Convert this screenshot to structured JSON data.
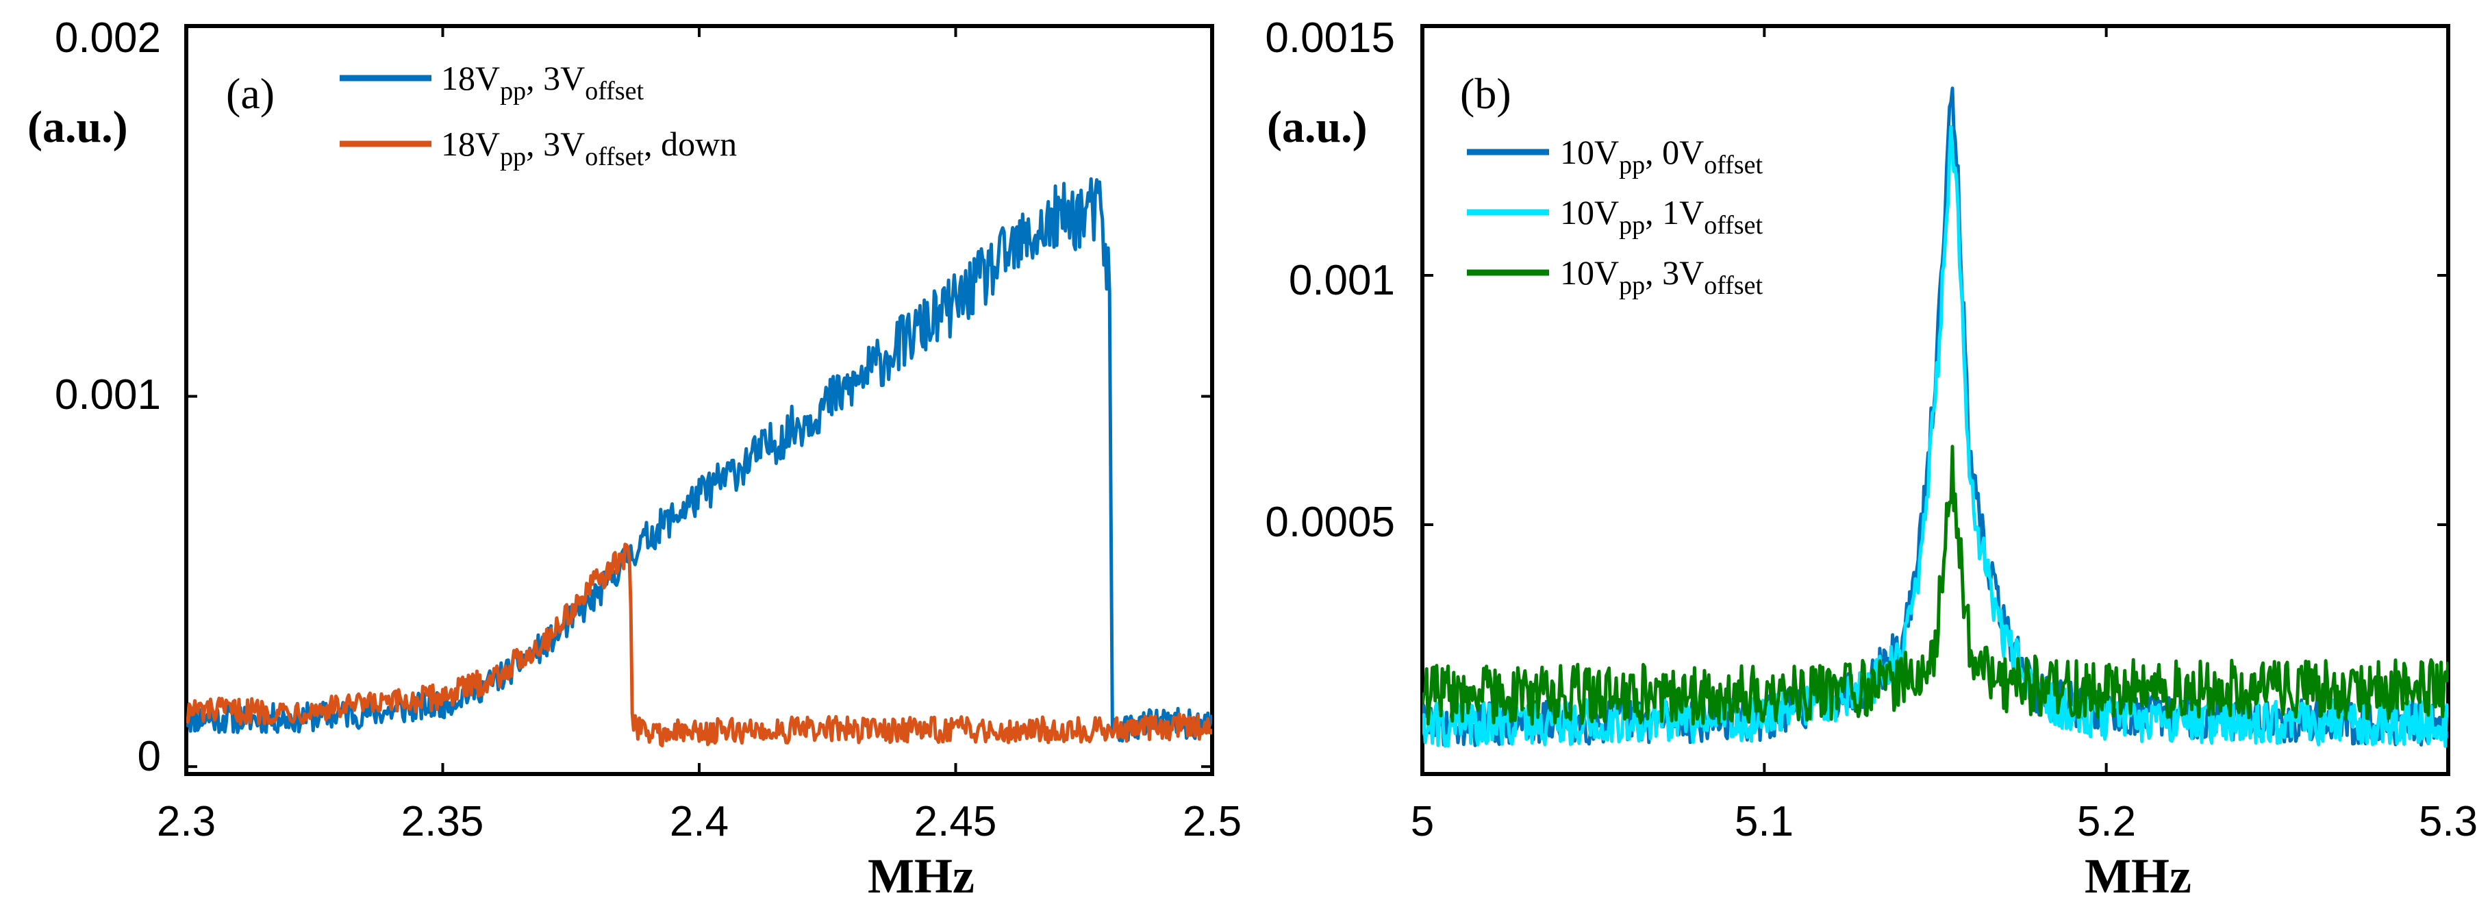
{
  "chart_data": [
    {
      "type": "line",
      "panel_label": "(a)",
      "ylabel": "(a.u.)",
      "xlabel": "MHz",
      "xlim": [
        2.3,
        2.5
      ],
      "ylim": [
        -2e-05,
        0.002
      ],
      "xticks": [
        2.3,
        2.35,
        2.4,
        2.45,
        2.5
      ],
      "xtick_labels": [
        "2.3",
        "2.35",
        "2.4",
        "2.45",
        "2.5"
      ],
      "yticks": [
        0,
        0.001,
        0.002
      ],
      "ytick_labels": [
        "0",
        "0.001",
        "0.002"
      ],
      "legend_position": "top-left",
      "series": [
        {
          "name": "18Vpp, 3Voffset",
          "legend": {
            "a": "18V",
            "s1": "pp",
            "b": ", 3V",
            "s2": "offset",
            "c": ""
          },
          "color": "#0072BD",
          "x": [
            2.3,
            2.32,
            2.34,
            2.35,
            2.36,
            2.37,
            2.38,
            2.385,
            2.39,
            2.4,
            2.41,
            2.42,
            2.43,
            2.44,
            2.45,
            2.46,
            2.47,
            2.478,
            2.48,
            2.4805,
            2.49,
            2.5
          ],
          "values": [
            0.00013,
            0.00013,
            0.00015,
            0.00017,
            0.00023,
            0.00033,
            0.00046,
            0.00055,
            0.00062,
            0.00073,
            0.00083,
            0.00093,
            0.00103,
            0.00115,
            0.00125,
            0.00138,
            0.00148,
            0.0015,
            0.00131,
            0.0001,
            0.00012,
            0.00011
          ],
          "noise": 4e-05,
          "noise_growth": 6e-05,
          "noise_from": 2.38,
          "noise_to": 2.48
        },
        {
          "name": "18Vpp, 3Voffset, down",
          "legend": {
            "a": "18V",
            "s1": "pp",
            "b": ", 3V",
            "s2": "offset",
            "c": ", down"
          },
          "color": "#D95319",
          "x": [
            2.3,
            2.32,
            2.34,
            2.35,
            2.36,
            2.37,
            2.375,
            2.38,
            2.385,
            2.3865,
            2.387,
            2.39,
            2.42,
            2.45,
            2.48,
            2.5
          ],
          "values": [
            0.00015,
            0.00015,
            0.00017,
            0.00019,
            0.00024,
            0.00034,
            0.00042,
            0.0005,
            0.00056,
            0.00058,
            0.00012,
            9e-05,
            0.0001,
            0.0001,
            0.0001,
            0.00011
          ],
          "noise": 3.5e-05,
          "noise_growth": 0,
          "noise_from": 2.38,
          "noise_to": 2.48
        }
      ]
    },
    {
      "type": "line",
      "panel_label": "(b)",
      "ylabel": "(a.u.)",
      "xlabel": "MHz",
      "xlim": [
        5.0,
        5.3
      ],
      "ylim": [
        0.0,
        0.0015
      ],
      "xticks": [
        5.0,
        5.1,
        5.2,
        5.3
      ],
      "xtick_labels": [
        "5",
        "5.1",
        "5.2",
        "5.3"
      ],
      "yticks": [
        0.0005,
        0.001,
        0.0015
      ],
      "ytick_labels": [
        "0.0005",
        "0.001",
        "0.0015"
      ],
      "legend_position": "top-left",
      "series": [
        {
          "name": "10Vpp, 0Voffset",
          "legend": {
            "a": "10V",
            "s1": "pp",
            "b": ", 0V",
            "s2": "offset",
            "c": ""
          },
          "color": "#0072BD",
          "x": [
            5.0,
            5.1,
            5.13,
            5.14,
            5.145,
            5.15,
            5.1545,
            5.156,
            5.16,
            5.165,
            5.17,
            5.18,
            5.2,
            5.3
          ],
          "values": [
            0.0001,
            0.00011,
            0.00018,
            0.00026,
            0.00042,
            0.00078,
            0.00138,
            0.0013,
            0.00062,
            0.00043,
            0.0003,
            0.00016,
            0.00012,
            0.0001
          ],
          "noise": 4.5e-05
        },
        {
          "name": "10Vpp, 1Voffset",
          "legend": {
            "a": "10V",
            "s1": "pp",
            "b": ", 1V",
            "s2": "offset",
            "c": ""
          },
          "color": "#00E5FF",
          "x": [
            5.0,
            5.1,
            5.13,
            5.14,
            5.145,
            5.15,
            5.1545,
            5.156,
            5.16,
            5.165,
            5.17,
            5.18,
            5.2,
            5.3
          ],
          "values": [
            0.0001,
            0.00011,
            0.00017,
            0.00024,
            0.0004,
            0.00074,
            0.00128,
            0.00122,
            0.00058,
            0.0004,
            0.00028,
            0.00015,
            0.00011,
            0.0001
          ],
          "noise": 4.5e-05
        },
        {
          "name": "10Vpp, 3Voffset",
          "legend": {
            "a": "10V",
            "s1": "pp",
            "b": ", 3V",
            "s2": "offset",
            "c": ""
          },
          "color": "#007F00",
          "x": [
            5.0,
            5.1,
            5.14,
            5.15,
            5.155,
            5.16,
            5.17,
            5.2,
            5.3
          ],
          "values": [
            0.00016,
            0.00016,
            0.00018,
            0.00025,
            0.0006,
            0.00026,
            0.00018,
            0.00017,
            0.00017
          ],
          "noise": 6e-05
        }
      ]
    }
  ]
}
